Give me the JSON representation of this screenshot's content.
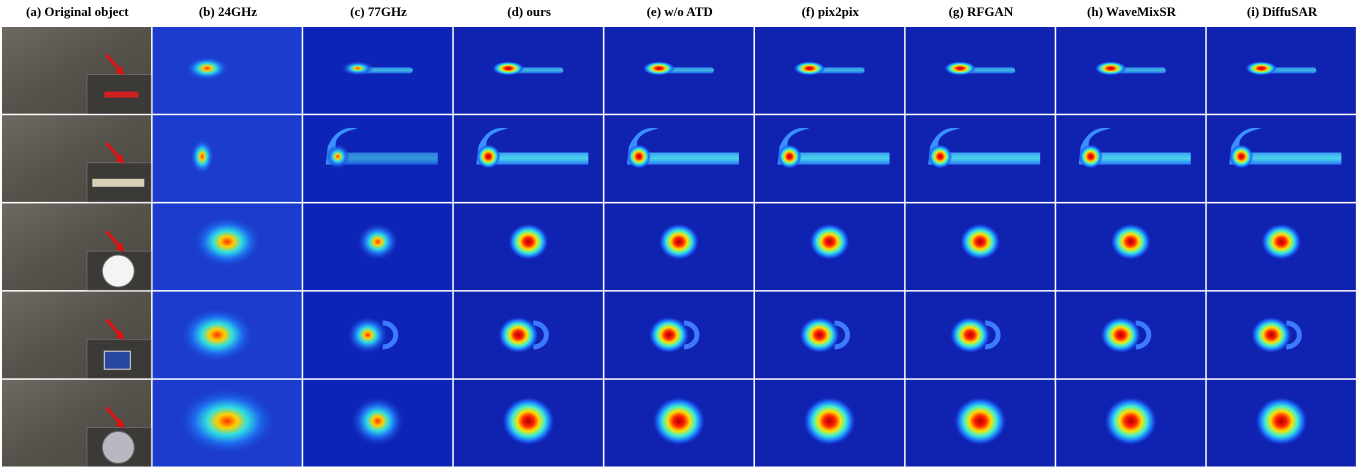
{
  "header": {
    "columns": [
      "(a) Original object",
      "(b) 24GHz",
      "(c) 77GHz",
      "(d) ours",
      "(e) w/o ATD",
      "(f) pix2pix",
      "(g) RFGAN",
      "(h) WaveMixSR",
      "(i) DiffuSAR"
    ]
  }
}
